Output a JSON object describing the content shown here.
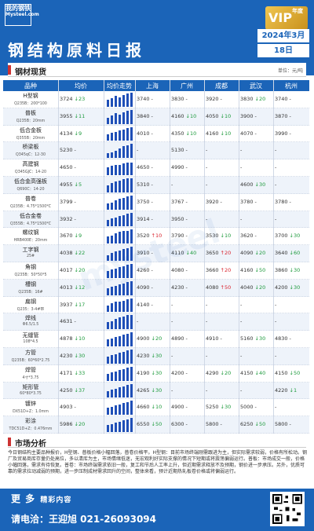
{
  "header": {
    "logo_top": "我的钢铁",
    "logo_bottom": "Mysteel.com",
    "vip_label": "VIP",
    "vip_small": "年度会员",
    "title": "钢结构原料日报",
    "date_month": "2024年3月",
    "date_day": "18日"
  },
  "section": {
    "label": "钢材现货",
    "unit": "单位：元/吨"
  },
  "columns": [
    "品种",
    "均价",
    "均价走势",
    "上海",
    "广州",
    "成都",
    "武汉",
    "杭州"
  ],
  "rows": [
    {
      "name": "H型钢",
      "spec": "Q235B：200*100",
      "avg": "3724",
      "avg_chg": "↓23",
      "dir": "down",
      "trend": [
        6,
        7,
        9,
        8,
        10,
        11,
        12
      ],
      "cities": [
        {
          "p": "3740",
          "c": "-",
          "d": ""
        },
        {
          "p": "3830",
          "c": "-",
          "d": ""
        },
        {
          "p": "3920",
          "c": "-",
          "d": ""
        },
        {
          "p": "3830",
          "c": "↓20",
          "d": "down"
        },
        {
          "p": "3740",
          "c": "-",
          "d": ""
        }
      ]
    },
    {
      "name": "普板",
      "spec": "Q235B：20mm",
      "avg": "3955",
      "avg_chg": "↓11",
      "dir": "down",
      "trend": [
        5,
        7,
        9,
        8,
        10,
        11,
        12
      ],
      "cities": [
        {
          "p": "3840",
          "c": "-",
          "d": ""
        },
        {
          "p": "4160",
          "c": "↓10",
          "d": "down"
        },
        {
          "p": "4050",
          "c": "↓10",
          "d": "down"
        },
        {
          "p": "3900",
          "c": "-",
          "d": ""
        },
        {
          "p": "3870",
          "c": "-",
          "d": ""
        }
      ]
    },
    {
      "name": "低合金板",
      "spec": "Q355B：20mm",
      "avg": "4134",
      "avg_chg": "↓9",
      "dir": "down",
      "trend": [
        6,
        7,
        8,
        9,
        10,
        11,
        12
      ],
      "cities": [
        {
          "p": "4010",
          "c": "-",
          "d": ""
        },
        {
          "p": "4350",
          "c": "↓10",
          "d": "down"
        },
        {
          "p": "4160",
          "c": "↓10",
          "d": "down"
        },
        {
          "p": "4070",
          "c": "-",
          "d": ""
        },
        {
          "p": "3990",
          "c": "-",
          "d": ""
        }
      ]
    },
    {
      "name": "桥梁板",
      "spec": "Q345qC：12-30",
      "avg": "5230",
      "avg_chg": "-",
      "dir": "",
      "trend": [
        4,
        5,
        6,
        8,
        10,
        11,
        12
      ],
      "cities": [
        {
          "p": "-",
          "c": "",
          "d": ""
        },
        {
          "p": "5130",
          "c": "-",
          "d": ""
        },
        {
          "p": "-",
          "c": "",
          "d": ""
        },
        {
          "p": "-",
          "c": "",
          "d": ""
        },
        {
          "p": "-",
          "c": "",
          "d": ""
        }
      ]
    },
    {
      "name": "高建钢",
      "spec": "Q345GJC：14-20",
      "avg": "4650",
      "avg_chg": "-",
      "dir": "",
      "trend": [
        7,
        8,
        9,
        9,
        10,
        11,
        11
      ],
      "cities": [
        {
          "p": "4650",
          "c": "-",
          "d": ""
        },
        {
          "p": "4990",
          "c": "-",
          "d": ""
        },
        {
          "p": "-",
          "c": "",
          "d": ""
        },
        {
          "p": "-",
          "c": "",
          "d": ""
        },
        {
          "p": "-",
          "c": "",
          "d": ""
        }
      ]
    },
    {
      "name": "低合金高强板",
      "spec": "Q690C：14-20",
      "avg": "4955",
      "avg_chg": "↓5",
      "dir": "down",
      "trend": [
        6,
        8,
        9,
        10,
        11,
        12,
        12
      ],
      "cities": [
        {
          "p": "5310",
          "c": "-",
          "d": ""
        },
        {
          "p": "-",
          "c": "",
          "d": ""
        },
        {
          "p": "-",
          "c": "",
          "d": ""
        },
        {
          "p": "4600",
          "c": "↓30",
          "d": "down"
        },
        {
          "p": "-",
          "c": "",
          "d": ""
        }
      ]
    },
    {
      "name": "普卷",
      "spec": "Q235B：4.75*1500*C",
      "avg": "3799",
      "avg_chg": "-",
      "dir": "",
      "trend": [
        5,
        6,
        8,
        9,
        10,
        11,
        12
      ],
      "cities": [
        {
          "p": "3750",
          "c": "-",
          "d": ""
        },
        {
          "p": "3767",
          "c": "-",
          "d": ""
        },
        {
          "p": "3920",
          "c": "-",
          "d": ""
        },
        {
          "p": "3780",
          "c": "-",
          "d": ""
        },
        {
          "p": "3780",
          "c": "-",
          "d": ""
        }
      ]
    },
    {
      "name": "低合金卷",
      "spec": "Q355B：4.75*1500*C",
      "avg": "3932",
      "avg_chg": "-",
      "dir": "",
      "trend": [
        6,
        7,
        8,
        9,
        10,
        11,
        12
      ],
      "cities": [
        {
          "p": "3914",
          "c": "-",
          "d": ""
        },
        {
          "p": "3950",
          "c": "-",
          "d": ""
        },
        {
          "p": "-",
          "c": "",
          "d": ""
        },
        {
          "p": "-",
          "c": "",
          "d": ""
        },
        {
          "p": "-",
          "c": "",
          "d": ""
        }
      ]
    },
    {
      "name": "螺纹钢",
      "spec": "HRB400E：20mm",
      "avg": "3670",
      "avg_chg": "↓9",
      "dir": "down",
      "trend": [
        6,
        7,
        9,
        10,
        11,
        11,
        12
      ],
      "cities": [
        {
          "p": "3520",
          "c": "↑10",
          "d": "up"
        },
        {
          "p": "3790",
          "c": "-",
          "d": ""
        },
        {
          "p": "3530",
          "c": "↓10",
          "d": "down"
        },
        {
          "p": "3620",
          "c": "-",
          "d": ""
        },
        {
          "p": "3700",
          "c": "↓30",
          "d": "down"
        }
      ]
    },
    {
      "name": "工字钢",
      "spec": "25#",
      "avg": "4038",
      "avg_chg": "↓22",
      "dir": "down",
      "trend": [
        5,
        7,
        8,
        9,
        10,
        11,
        12
      ],
      "cities": [
        {
          "p": "3910",
          "c": "-",
          "d": ""
        },
        {
          "p": "4110",
          "c": "↓40",
          "d": "down"
        },
        {
          "p": "3650",
          "c": "↑20",
          "d": "up"
        },
        {
          "p": "4090",
          "c": "↓20",
          "d": "down"
        },
        {
          "p": "3640",
          "c": "↓60",
          "d": "down"
        }
      ]
    },
    {
      "name": "角钢",
      "spec": "Q235B：50*50*5",
      "avg": "4017",
      "avg_chg": "↓20",
      "dir": "down",
      "trend": [
        6,
        7,
        8,
        9,
        10,
        11,
        12
      ],
      "cities": [
        {
          "p": "4260",
          "c": "-",
          "d": ""
        },
        {
          "p": "4080",
          "c": "-",
          "d": ""
        },
        {
          "p": "3660",
          "c": "↑20",
          "d": "up"
        },
        {
          "p": "4160",
          "c": "↓50",
          "d": "down"
        },
        {
          "p": "3860",
          "c": "↓30",
          "d": "down"
        }
      ]
    },
    {
      "name": "槽钢",
      "spec": "Q235B：16#",
      "avg": "4013",
      "avg_chg": "↓12",
      "dir": "down",
      "trend": [
        6,
        7,
        8,
        9,
        10,
        11,
        12
      ],
      "cities": [
        {
          "p": "4090",
          "c": "-",
          "d": ""
        },
        {
          "p": "4230",
          "c": "-",
          "d": ""
        },
        {
          "p": "4080",
          "c": "↑50",
          "d": "up"
        },
        {
          "p": "4040",
          "c": "↓20",
          "d": "down"
        },
        {
          "p": "4200",
          "c": "↓30",
          "d": "down"
        }
      ]
    },
    {
      "name": "扁钢",
      "spec": "Q235：3-4#带",
      "avg": "3937",
      "avg_chg": "↓17",
      "dir": "down",
      "trend": [
        6,
        8,
        9,
        9,
        10,
        11,
        12
      ],
      "cities": [
        {
          "p": "4140",
          "c": "-",
          "d": ""
        },
        {
          "p": "-",
          "c": "",
          "d": ""
        },
        {
          "p": "-",
          "c": "",
          "d": ""
        },
        {
          "p": "-",
          "c": "",
          "d": ""
        },
        {
          "p": "-",
          "c": "",
          "d": ""
        }
      ]
    },
    {
      "name": "焊线",
      "spec": "Φ6.5/1.5",
      "avg": "4631",
      "avg_chg": "-",
      "dir": "",
      "trend": [
        6,
        7,
        9,
        10,
        11,
        12,
        12
      ],
      "cities": [
        {
          "p": "-",
          "c": "",
          "d": ""
        },
        {
          "p": "-",
          "c": "",
          "d": ""
        },
        {
          "p": "-",
          "c": "",
          "d": ""
        },
        {
          "p": "-",
          "c": "",
          "d": ""
        },
        {
          "p": "-",
          "c": "",
          "d": ""
        }
      ]
    },
    {
      "name": "无缝管",
      "spec": "108*4.5",
      "avg": "4878",
      "avg_chg": "↓10",
      "dir": "down",
      "trend": [
        6,
        7,
        8,
        9,
        10,
        11,
        12
      ],
      "cities": [
        {
          "p": "4900",
          "c": "↓20",
          "d": "down"
        },
        {
          "p": "4890",
          "c": "-",
          "d": ""
        },
        {
          "p": "4910",
          "c": "-",
          "d": ""
        },
        {
          "p": "5160",
          "c": "↓30",
          "d": "down"
        },
        {
          "p": "4830",
          "c": "-",
          "d": ""
        }
      ]
    },
    {
      "name": "方管",
      "spec": "Q235B：60*60*2.75",
      "avg": "4230",
      "avg_chg": "↓30",
      "dir": "down",
      "trend": [
        6,
        7,
        8,
        9,
        10,
        11,
        12
      ],
      "cities": [
        {
          "p": "4230",
          "c": "↓30",
          "d": "down"
        },
        {
          "p": "-",
          "c": "",
          "d": ""
        },
        {
          "p": "-",
          "c": "",
          "d": ""
        },
        {
          "p": "-",
          "c": "",
          "d": ""
        },
        {
          "p": "-",
          "c": "",
          "d": ""
        }
      ]
    },
    {
      "name": "焊管",
      "spec": "4寸*3.75",
      "avg": "4171",
      "avg_chg": "↓33",
      "dir": "down",
      "trend": [
        6,
        7,
        8,
        9,
        10,
        11,
        12
      ],
      "cities": [
        {
          "p": "4190",
          "c": "↓30",
          "d": "down"
        },
        {
          "p": "4200",
          "c": "-",
          "d": ""
        },
        {
          "p": "4290",
          "c": "↓20",
          "d": "down"
        },
        {
          "p": "4150",
          "c": "↓40",
          "d": "down"
        },
        {
          "p": "4150",
          "c": "↓50",
          "d": "down"
        }
      ]
    },
    {
      "name": "矩形管",
      "spec": "60*80*3.75",
      "avg": "4250",
      "avg_chg": "↓37",
      "dir": "down",
      "trend": [
        6,
        7,
        8,
        9,
        10,
        11,
        12
      ],
      "cities": [
        {
          "p": "4265",
          "c": "↓30",
          "d": "down"
        },
        {
          "p": "-",
          "c": "",
          "d": ""
        },
        {
          "p": "-",
          "c": "",
          "d": ""
        },
        {
          "p": "-",
          "c": "",
          "d": ""
        },
        {
          "p": "4220",
          "c": "↓1",
          "d": "down"
        }
      ]
    },
    {
      "name": "镀锌",
      "spec": "DX51D+Z：1.0mm",
      "avg": "4903",
      "avg_chg": "-",
      "dir": "",
      "trend": [
        6,
        7,
        8,
        9,
        10,
        11,
        12
      ],
      "cities": [
        {
          "p": "4660",
          "c": "↓10",
          "d": "down"
        },
        {
          "p": "4900",
          "c": "-",
          "d": ""
        },
        {
          "p": "5250",
          "c": "↓30",
          "d": "down"
        },
        {
          "p": "5000",
          "c": "-",
          "d": ""
        },
        {
          "p": "-",
          "c": "",
          "d": ""
        }
      ]
    },
    {
      "name": "彩涂",
      "spec": "TDC51D+Z：0.476mm",
      "avg": "5986",
      "avg_chg": "↓20",
      "dir": "down",
      "trend": [
        6,
        7,
        8,
        9,
        10,
        11,
        12
      ],
      "cities": [
        {
          "p": "6550",
          "c": "↓50",
          "d": "down"
        },
        {
          "p": "6300",
          "c": "-",
          "d": ""
        },
        {
          "p": "5800",
          "c": "-",
          "d": ""
        },
        {
          "p": "6250",
          "c": "↓50",
          "d": "down"
        },
        {
          "p": "5800",
          "c": "-",
          "d": ""
        }
      ]
    }
  ],
  "market": {
    "label": "市场分析",
    "text": "今日钢结构主要品种报价，H型钢、普板价格小幅回落，普卷价格平。H型钢：目前市场终端刚需跟进为主，但实际需求较弱，价格有所松动。钢厂及贸易商库存量仍处高位，多以清库为主，市场情绪低迷，无宏观利好实际支撑的情况下短期或将震荡偏弱运行。普板：市场成交一般，价格小幅回落，需求有待恢复。普卷：市场终端需求依旧一般，复工和节后人工率上升，但近期需求释放不及预期，钢价进一步承压。另外，优质可靠的需求拉动减弱的预期，进一步压制成材需求回升的空间，整体来看，预计近期热轧板卷价格或将偏弱运行。"
  },
  "footer": {
    "more": "更 多",
    "more_sub": "精彩内容",
    "contact": "请电洽：王迎旭 021-26093094"
  },
  "colors": {
    "brand": "#1b64b8",
    "up": "#d9232d",
    "down": "#1d9a3c"
  }
}
